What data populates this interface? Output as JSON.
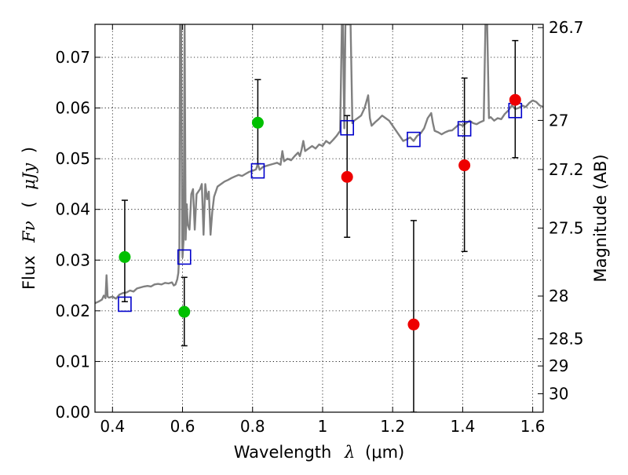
{
  "chart_data": {
    "type": "scatter",
    "xlabel": {
      "text": "Wavelength",
      "symbol": "λ",
      "unit": "(μm)"
    },
    "ylabel": {
      "text": "Flux",
      "symbol": "Fν",
      "open": "(",
      "unit": "μJy",
      "close": ")"
    },
    "y2label": "Magnitude (AB)",
    "xlim": [
      0.35,
      1.63
    ],
    "ylim": [
      0.0,
      0.0765
    ],
    "grid": true,
    "xticks": [
      {
        "value": 0.4,
        "label": "0.4"
      },
      {
        "value": 0.6,
        "label": "0.6"
      },
      {
        "value": 0.8,
        "label": "0.8"
      },
      {
        "value": 1.0,
        "label": "1"
      },
      {
        "value": 1.2,
        "label": "1.2"
      },
      {
        "value": 1.4,
        "label": "1.4"
      },
      {
        "value": 1.6,
        "label": "1.6"
      }
    ],
    "yticks": [
      {
        "value": 0.0,
        "label": "0.00"
      },
      {
        "value": 0.01,
        "label": "0.01"
      },
      {
        "value": 0.02,
        "label": "0.02"
      },
      {
        "value": 0.03,
        "label": "0.03"
      },
      {
        "value": 0.04,
        "label": "0.04"
      },
      {
        "value": 0.05,
        "label": "0.05"
      },
      {
        "value": 0.06,
        "label": "0.06"
      },
      {
        "value": 0.07,
        "label": "0.07"
      }
    ],
    "y2ticks": [
      {
        "mag": 26.7,
        "label": "26.7"
      },
      {
        "mag": 27.0,
        "label": "27"
      },
      {
        "mag": 27.2,
        "label": "27.2"
      },
      {
        "mag": 27.5,
        "label": "27.5"
      },
      {
        "mag": 28.0,
        "label": "28"
      },
      {
        "mag": 28.5,
        "label": "28.5"
      },
      {
        "mag": 29.0,
        "label": "29"
      },
      {
        "mag": 30.0,
        "label": "30"
      }
    ],
    "model_spectrum": {
      "color": "#808080",
      "points": [
        [
          0.35,
          0.0215
        ],
        [
          0.36,
          0.0218
        ],
        [
          0.37,
          0.0222
        ],
        [
          0.375,
          0.023
        ],
        [
          0.38,
          0.0225
        ],
        [
          0.383,
          0.027
        ],
        [
          0.386,
          0.0228
        ],
        [
          0.39,
          0.0226
        ],
        [
          0.4,
          0.0228
        ],
        [
          0.41,
          0.0224
        ],
        [
          0.42,
          0.0232
        ],
        [
          0.43,
          0.0235
        ],
        [
          0.44,
          0.0236
        ],
        [
          0.45,
          0.024
        ],
        [
          0.46,
          0.0238
        ],
        [
          0.47,
          0.0244
        ],
        [
          0.48,
          0.0246
        ],
        [
          0.49,
          0.0248
        ],
        [
          0.5,
          0.0249
        ],
        [
          0.51,
          0.0248
        ],
        [
          0.52,
          0.0252
        ],
        [
          0.53,
          0.0253
        ],
        [
          0.54,
          0.0252
        ],
        [
          0.55,
          0.0255
        ],
        [
          0.56,
          0.0254
        ],
        [
          0.57,
          0.0256
        ],
        [
          0.575,
          0.025
        ],
        [
          0.58,
          0.0252
        ],
        [
          0.585,
          0.0262
        ],
        [
          0.588,
          0.0275
        ],
        [
          0.591,
          0.032
        ],
        [
          0.593,
          0.0765
        ],
        [
          0.596,
          0.0765
        ],
        [
          0.599,
          0.034
        ],
        [
          0.6,
          0.0305
        ],
        [
          0.603,
          0.034
        ],
        [
          0.606,
          0.0765
        ],
        [
          0.609,
          0.034
        ],
        [
          0.612,
          0.041
        ],
        [
          0.615,
          0.037
        ],
        [
          0.62,
          0.036
        ],
        [
          0.625,
          0.043
        ],
        [
          0.63,
          0.044
        ],
        [
          0.635,
          0.036
        ],
        [
          0.64,
          0.043
        ],
        [
          0.65,
          0.044
        ],
        [
          0.655,
          0.045
        ],
        [
          0.66,
          0.035
        ],
        [
          0.665,
          0.045
        ],
        [
          0.67,
          0.042
        ],
        [
          0.675,
          0.0435
        ],
        [
          0.68,
          0.035
        ],
        [
          0.685,
          0.0395
        ],
        [
          0.69,
          0.0425
        ],
        [
          0.7,
          0.0445
        ],
        [
          0.71,
          0.045
        ],
        [
          0.72,
          0.0455
        ],
        [
          0.73,
          0.0458
        ],
        [
          0.74,
          0.0462
        ],
        [
          0.75,
          0.0465
        ],
        [
          0.76,
          0.0468
        ],
        [
          0.77,
          0.0466
        ],
        [
          0.78,
          0.047
        ],
        [
          0.79,
          0.0474
        ],
        [
          0.8,
          0.0476
        ],
        [
          0.81,
          0.0479
        ],
        [
          0.815,
          0.049
        ],
        [
          0.82,
          0.0478
        ],
        [
          0.83,
          0.0484
        ],
        [
          0.84,
          0.0486
        ],
        [
          0.85,
          0.0488
        ],
        [
          0.86,
          0.049
        ],
        [
          0.87,
          0.0492
        ],
        [
          0.88,
          0.0488
        ],
        [
          0.885,
          0.0515
        ],
        [
          0.89,
          0.0495
        ],
        [
          0.9,
          0.05
        ],
        [
          0.91,
          0.0497
        ],
        [
          0.92,
          0.0505
        ],
        [
          0.93,
          0.0512
        ],
        [
          0.935,
          0.0505
        ],
        [
          0.94,
          0.0518
        ],
        [
          0.945,
          0.0535
        ],
        [
          0.95,
          0.0515
        ],
        [
          0.96,
          0.052
        ],
        [
          0.97,
          0.0525
        ],
        [
          0.98,
          0.052
        ],
        [
          0.99,
          0.0528
        ],
        [
          1.0,
          0.0525
        ],
        [
          1.01,
          0.0535
        ],
        [
          1.02,
          0.053
        ],
        [
          1.03,
          0.0537
        ],
        [
          1.04,
          0.0545
        ],
        [
          1.05,
          0.0555
        ],
        [
          1.055,
          0.0765
        ],
        [
          1.058,
          0.0765
        ],
        [
          1.062,
          0.056
        ],
        [
          1.065,
          0.0765
        ],
        [
          1.07,
          0.0765
        ],
        [
          1.075,
          0.0765
        ],
        [
          1.08,
          0.0765
        ],
        [
          1.085,
          0.057
        ],
        [
          1.09,
          0.0575
        ],
        [
          1.1,
          0.058
        ],
        [
          1.11,
          0.0585
        ],
        [
          1.12,
          0.06
        ],
        [
          1.13,
          0.0625
        ],
        [
          1.135,
          0.058
        ],
        [
          1.14,
          0.0565
        ],
        [
          1.15,
          0.0572
        ],
        [
          1.16,
          0.0578
        ],
        [
          1.17,
          0.0585
        ],
        [
          1.18,
          0.058
        ],
        [
          1.19,
          0.0575
        ],
        [
          1.2,
          0.0565
        ],
        [
          1.21,
          0.0555
        ],
        [
          1.22,
          0.0545
        ],
        [
          1.23,
          0.0535
        ],
        [
          1.24,
          0.0538
        ],
        [
          1.25,
          0.0542
        ],
        [
          1.26,
          0.0535
        ],
        [
          1.27,
          0.0545
        ],
        [
          1.28,
          0.055
        ],
        [
          1.29,
          0.056
        ],
        [
          1.3,
          0.058
        ],
        [
          1.31,
          0.059
        ],
        [
          1.315,
          0.057
        ],
        [
          1.32,
          0.0555
        ],
        [
          1.33,
          0.0552
        ],
        [
          1.34,
          0.0548
        ],
        [
          1.35,
          0.0552
        ],
        [
          1.36,
          0.0555
        ],
        [
          1.37,
          0.0556
        ],
        [
          1.38,
          0.0562
        ],
        [
          1.39,
          0.0568
        ],
        [
          1.4,
          0.0565
        ],
        [
          1.41,
          0.057
        ],
        [
          1.42,
          0.0575
        ],
        [
          1.43,
          0.057
        ],
        [
          1.44,
          0.0568
        ],
        [
          1.45,
          0.0572
        ],
        [
          1.46,
          0.0575
        ],
        [
          1.465,
          0.0765
        ],
        [
          1.47,
          0.0765
        ],
        [
          1.475,
          0.058
        ],
        [
          1.48,
          0.0582
        ],
        [
          1.49,
          0.0575
        ],
        [
          1.5,
          0.058
        ],
        [
          1.51,
          0.0578
        ],
        [
          1.52,
          0.0588
        ],
        [
          1.53,
          0.0595
        ],
        [
          1.54,
          0.0605
        ],
        [
          1.55,
          0.0598
        ],
        [
          1.56,
          0.06
        ],
        [
          1.57,
          0.0605
        ],
        [
          1.58,
          0.0602
        ],
        [
          1.59,
          0.061
        ],
        [
          1.6,
          0.0615
        ],
        [
          1.61,
          0.0612
        ],
        [
          1.62,
          0.0605
        ],
        [
          1.63,
          0.0602
        ]
      ]
    },
    "model_photometry": {
      "marker": "open-square",
      "color": "#0000cc",
      "x": [
        0.435,
        0.605,
        0.815,
        1.07,
        1.26,
        1.405,
        1.55
      ],
      "y": [
        0.0213,
        0.0306,
        0.0476,
        0.0561,
        0.0538,
        0.0559,
        0.0595
      ]
    },
    "observed_green": {
      "color": "#00c000",
      "points": [
        {
          "x": 0.435,
          "y": 0.0306,
          "err_lo": 0.0218,
          "err_hi": 0.0418
        },
        {
          "x": 0.605,
          "y": 0.0198,
          "err_lo": 0.0131,
          "err_hi": 0.0266
        },
        {
          "x": 0.815,
          "y": 0.0571,
          "err_lo": 0.049,
          "err_hi": 0.0656
        }
      ]
    },
    "observed_red": {
      "color": "#ee0000",
      "points": [
        {
          "x": 1.07,
          "y": 0.0464,
          "err_lo": 0.0345,
          "err_hi": 0.0585
        },
        {
          "x": 1.26,
          "y": 0.0173,
          "err_lo": 0.0,
          "err_hi": 0.0378
        },
        {
          "x": 1.405,
          "y": 0.0487,
          "err_lo": 0.0317,
          "err_hi": 0.0659
        },
        {
          "x": 1.55,
          "y": 0.0616,
          "err_lo": 0.0502,
          "err_hi": 0.0733
        }
      ]
    }
  }
}
